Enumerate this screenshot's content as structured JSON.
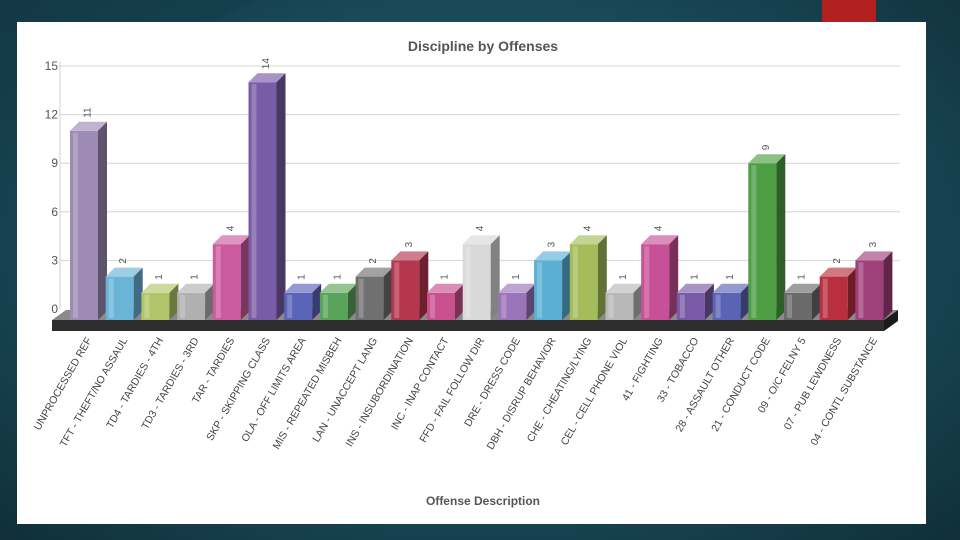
{
  "slide": {
    "background_color": "#1a4a58",
    "accent_color": "#b21f1f"
  },
  "chart_data": {
    "type": "bar",
    "title": "Discipline by Offenses",
    "xlabel": "Offense Description",
    "ylabel": "",
    "ylim": [
      0,
      15
    ],
    "yticks": [
      0,
      3,
      6,
      9,
      12,
      15
    ],
    "grid": true,
    "legend": "none",
    "style": "3d",
    "categories": [
      "UNPROCESSED REF",
      "TFT - THEFT/NO ASSAUL",
      "TD4 - TARDIES - 4TH",
      "TD3 - TARDIES - 3RD",
      "TAR - TARDIES",
      "SKP - SKIPPING CLASS",
      "OLA - OFF LIMITS AREA",
      "MIS - REPEATED MISBEH",
      "LAN - UNACCEPT LANG",
      "INS - INSUBORDINATION",
      "INC - INAP CONTACT",
      "FFD - FAIL FOLLOW DIR",
      "DRE - DRESS CODE",
      "DBH - DISRUP BEHAVIOR",
      "CHE - CHEATING/LYING",
      "CEL - CELL PHONE VIOL",
      "41 - FIGHTING",
      "33 - TOBACCO",
      "28 - ASSAULT OTHER",
      "21 - CONDUCT CODE",
      "09 - O/C FELNY 5",
      "07 - PUB LEWDNESS",
      "04 - CONTL SUBSTANCE"
    ],
    "values": [
      11,
      2,
      1,
      1,
      4,
      14,
      1,
      1,
      2,
      3,
      1,
      4,
      1,
      3,
      4,
      1,
      4,
      1,
      1,
      9,
      1,
      2,
      3
    ],
    "colors": [
      "#9d8ab5",
      "#6ab4d8",
      "#b3c46a",
      "#b0b0b0",
      "#cc5a9e",
      "#7a5ba5",
      "#5a64b8",
      "#5aa35a",
      "#707070",
      "#b5374e",
      "#c8508e",
      "#d9d9d9",
      "#9a74b8",
      "#5ab0d4",
      "#a4bd5a",
      "#b8b8b8",
      "#c85098",
      "#7a5aa8",
      "#5a64b4",
      "#4e9e44",
      "#6a6a6a",
      "#b83040",
      "#a0407a"
    ]
  }
}
